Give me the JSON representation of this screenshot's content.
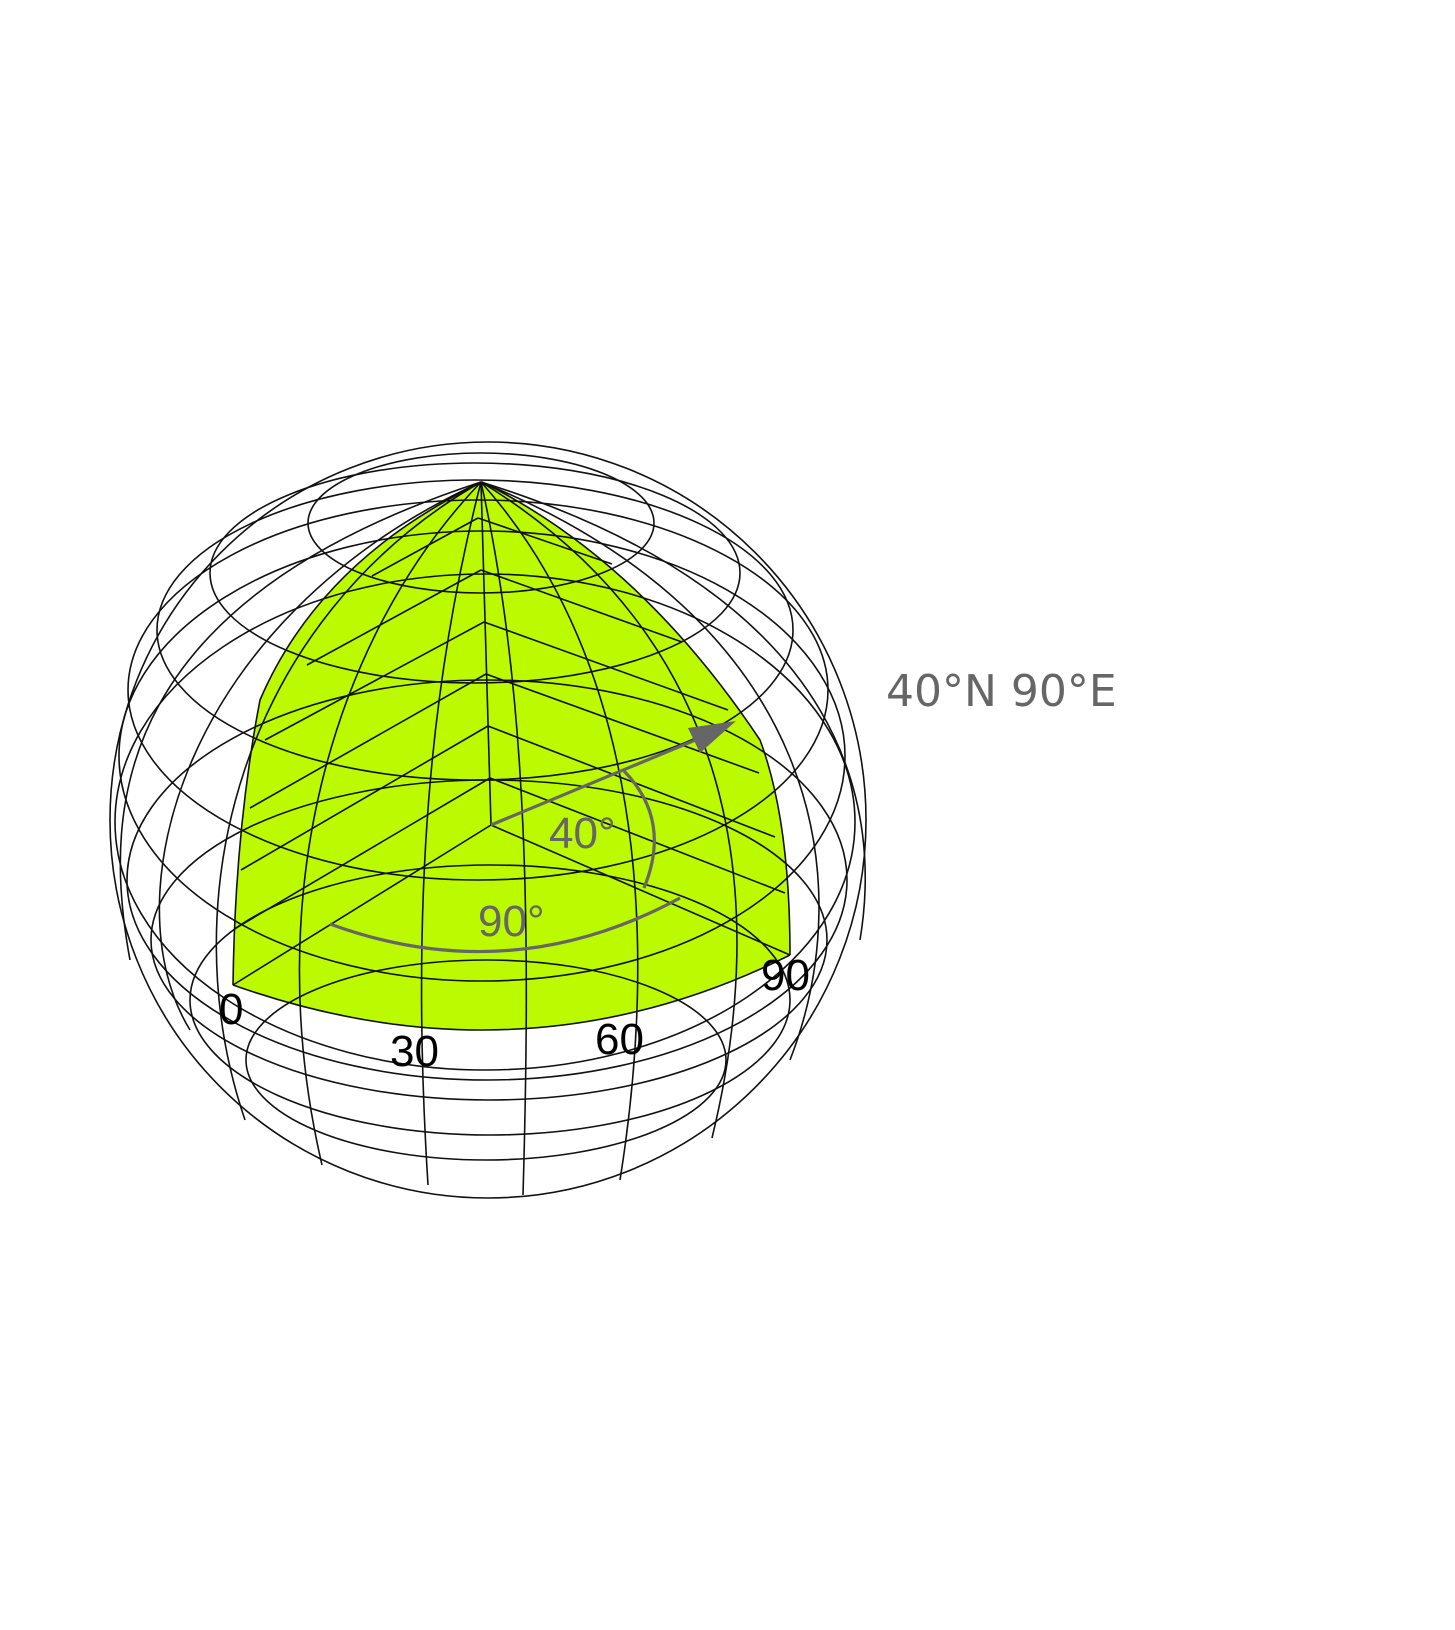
{
  "coordinate_label": "40°N 90°E",
  "latitude_angle_label": "40°",
  "longitude_angle_label": "90°",
  "meridian_labels": [
    "0",
    "30",
    "60",
    "90"
  ],
  "colors": {
    "wedge_fill": "#bbfa00",
    "grid_line": "#111111",
    "annotation": "#666666",
    "background": "#ffffff"
  }
}
